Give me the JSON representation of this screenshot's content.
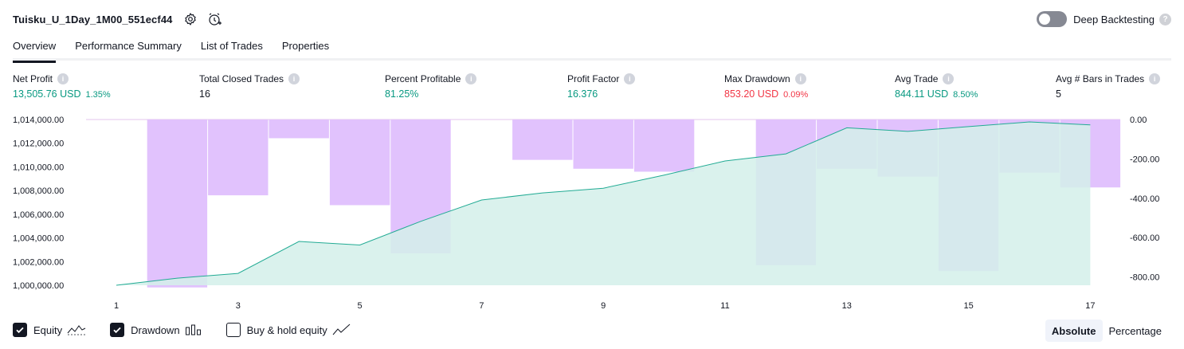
{
  "header": {
    "title": "Tuisku_U_1Day_1M00_551ecf44",
    "deep_backtesting_label": "Deep Backtesting",
    "deep_backtesting_enabled": false
  },
  "tabs": [
    {
      "label": "Overview",
      "active": true
    },
    {
      "label": "Performance Summary",
      "active": false
    },
    {
      "label": "List of Trades",
      "active": false
    },
    {
      "label": "Properties",
      "active": false
    }
  ],
  "stats": {
    "net_profit": {
      "label": "Net Profit",
      "value": "13,505.76 USD",
      "pct": "1.35%"
    },
    "total_closed_trades": {
      "label": "Total Closed Trades",
      "value": "16"
    },
    "percent_profitable": {
      "label": "Percent Profitable",
      "value": "81.25%"
    },
    "profit_factor": {
      "label": "Profit Factor",
      "value": "16.376"
    },
    "max_drawdown": {
      "label": "Max Drawdown",
      "value": "853.20 USD",
      "pct": "0.09%"
    },
    "avg_trade": {
      "label": "Avg Trade",
      "value": "844.11 USD",
      "pct": "8.50%"
    },
    "avg_bars": {
      "label": "Avg # Bars in Trades",
      "value": "5"
    }
  },
  "legend": {
    "equity_label": "Equity",
    "drawdown_label": "Drawdown",
    "buy_hold_label": "Buy & hold equity",
    "equity_checked": true,
    "drawdown_checked": true,
    "buy_hold_checked": false
  },
  "mode": {
    "absolute_label": "Absolute",
    "percentage_label": "Percentage",
    "selected": "Absolute"
  },
  "colors": {
    "equity_line": "#22ab94",
    "equity_fill": "#d4f0ea",
    "drawdown_bar": "#e1c2fd",
    "positive": "#089981",
    "negative": "#f23645"
  },
  "chart_data": {
    "type": "area",
    "x": [
      1,
      2,
      3,
      4,
      5,
      6,
      7,
      8,
      9,
      10,
      11,
      12,
      13,
      14,
      15,
      16,
      17
    ],
    "x_ticks": [
      "1",
      "3",
      "5",
      "7",
      "9",
      "11",
      "13",
      "15",
      "17"
    ],
    "y_left_ticks": [
      "1,014,000.00",
      "1,012,000.00",
      "1,010,000.00",
      "1,008,000.00",
      "1,006,000.00",
      "1,004,000.00",
      "1,002,000.00",
      "1,000,000.00"
    ],
    "y_left_range": [
      1000000,
      1014000
    ],
    "y_right_ticks": [
      "0.00",
      "-200.00",
      "-400.00",
      "-600.00",
      "-800.00"
    ],
    "y_right_range": [
      -850,
      0
    ],
    "series": [
      {
        "name": "Equity",
        "type": "area",
        "axis": "left",
        "values": [
          1000000,
          1000600,
          1001000,
          1003700,
          1003400,
          1005400,
          1007200,
          1007800,
          1008200,
          1009300,
          1010500,
          1011100,
          1013300,
          1013000,
          1013400,
          1013800,
          1013550
        ]
      },
      {
        "name": "Drawdown",
        "type": "bar",
        "axis": "right",
        "x": [
          2,
          3,
          4,
          5,
          6,
          8,
          9,
          10,
          12,
          13,
          14,
          15,
          16,
          17
        ],
        "values": [
          -853,
          -385,
          -95,
          -435,
          -680,
          -205,
          -250,
          -265,
          -740,
          -250,
          -290,
          -770,
          -270,
          -345
        ]
      }
    ]
  }
}
